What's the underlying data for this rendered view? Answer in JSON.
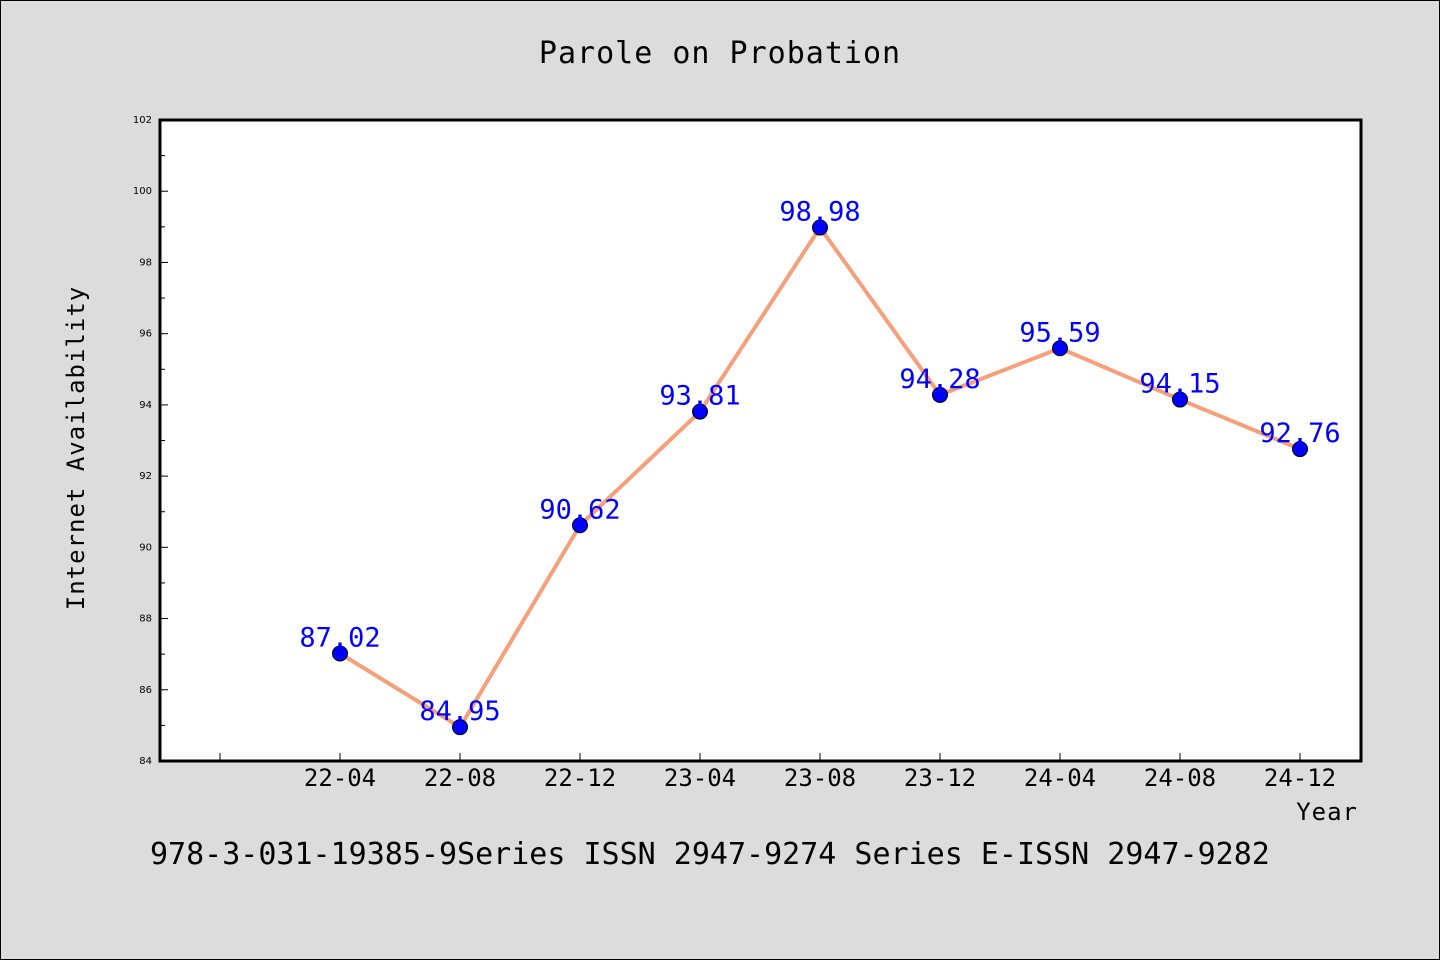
{
  "chart_data": {
    "type": "line",
    "title": "Parole on Probation",
    "xlabel": "Year",
    "ylabel": "Internet Availability",
    "categories": [
      "22-04",
      "22-08",
      "22-12",
      "23-04",
      "23-08",
      "23-12",
      "24-04",
      "24-08",
      "24-12"
    ],
    "series": [
      {
        "values": [
          87.02,
          84.95,
          90.62,
          93.81,
          98.98,
          94.28,
          95.59,
          94.15,
          92.76
        ],
        "value_labels": [
          "87.02",
          "84.95",
          "90.62",
          "93.81",
          "98.98",
          "94.28",
          "95.59",
          "94.15",
          "92.76"
        ],
        "line_color": "#f5a07a",
        "marker_color": "#0000ff"
      }
    ],
    "ylim": [
      84,
      102
    ],
    "yticks": [
      "84",
      "86",
      "88",
      "90",
      "92",
      "94",
      "96",
      "98",
      "100",
      "102"
    ],
    "grid": false,
    "legend": "none"
  },
  "footer": "978-3-031-19385-9Series ISSN 2947-9274 Series E-ISSN 2947-9282"
}
